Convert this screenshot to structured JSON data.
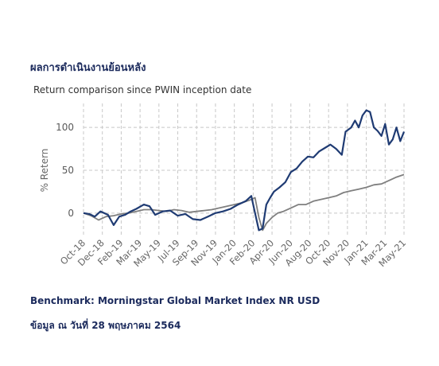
{
  "heading": "ผลการดำเนินงานย้อนหลัง",
  "subtitle": "Return comparison since PWIN inception date",
  "benchmark_note": "Benchmark: Morningstar Global Market Index NR USD",
  "data_as_of": "ข้อมูล ณ วันที่ 28 พฤษภาคม 2564",
  "chart_data": {
    "type": "line",
    "title": "Return comparison since PWIN inception date",
    "ylabel": "% Retern",
    "xlabel": "",
    "ylim": [
      -28,
      128
    ],
    "yticks": [
      0,
      50,
      100
    ],
    "grid": true,
    "categories": [
      "Oct-18",
      "Dec-18",
      "Feb-19",
      "Mar-19",
      "May-19",
      "Jul-19",
      "Sep-19",
      "Nov-19",
      "Jan-20",
      "Feb-20",
      "Apr-20",
      "Jun-20",
      "Aug-20",
      "Oct-20",
      "Nov-20",
      "Jan-21",
      "Mar-21",
      "May-21"
    ],
    "series": [
      {
        "name": "",
        "color": "#1f3b73",
        "x": [
          0,
          0.3,
          0.6,
          0.9,
          1.3,
          1.6,
          1.9,
          2.2,
          2.5,
          2.8,
          3.2,
          3.5,
          3.8,
          4.2,
          4.6,
          5.0,
          5.4,
          5.8,
          6.2,
          6.6,
          7.0,
          7.4,
          7.8,
          8.2,
          8.6,
          8.9,
          9.1,
          9.3,
          9.5,
          9.7,
          9.9,
          10.1,
          10.4,
          10.7,
          11.0,
          11.3,
          11.6,
          11.9,
          12.2,
          12.5,
          12.8,
          13.1,
          13.4,
          13.7,
          13.9,
          14.2,
          14.4,
          14.6,
          14.8,
          15.0,
          15.2,
          15.4,
          15.6,
          15.8,
          16.0,
          16.2,
          16.4,
          16.6,
          16.8,
          17.0
        ],
        "y": [
          0,
          -1,
          -4,
          2,
          -2,
          -14,
          -4,
          -2,
          2,
          5,
          10,
          8,
          -2,
          2,
          3,
          -3,
          -1,
          -7,
          -8,
          -4,
          0,
          2,
          5,
          10,
          14,
          20,
          0,
          -20,
          -18,
          10,
          18,
          25,
          30,
          36,
          48,
          52,
          60,
          66,
          65,
          72,
          76,
          80,
          75,
          68,
          95,
          100,
          108,
          100,
          114,
          120,
          118,
          100,
          96,
          90,
          104,
          80,
          86,
          100,
          84,
          95
        ]
      },
      {
        "name": "",
        "color": "#7f7f7f",
        "x": [
          0,
          0.4,
          0.8,
          1.2,
          1.6,
          2.0,
          2.4,
          2.8,
          3.2,
          3.6,
          4.0,
          4.4,
          4.8,
          5.2,
          5.6,
          6.0,
          6.4,
          6.8,
          7.2,
          7.6,
          8.0,
          8.4,
          8.8,
          9.1,
          9.3,
          9.5,
          9.7,
          10.0,
          10.3,
          10.6,
          11.0,
          11.4,
          11.8,
          12.2,
          12.6,
          13.0,
          13.4,
          13.8,
          14.2,
          14.6,
          15.0,
          15.4,
          15.8,
          16.2,
          16.6,
          17.0
        ],
        "y": [
          0,
          -3,
          -8,
          -4,
          -3,
          -1,
          0,
          2,
          4,
          4,
          3,
          2,
          4,
          3,
          1,
          2,
          3,
          4,
          6,
          8,
          10,
          12,
          15,
          18,
          -5,
          -20,
          -12,
          -5,
          0,
          2,
          6,
          10,
          10,
          14,
          16,
          18,
          20,
          24,
          26,
          28,
          30,
          33,
          34,
          38,
          42,
          45
        ]
      }
    ]
  }
}
